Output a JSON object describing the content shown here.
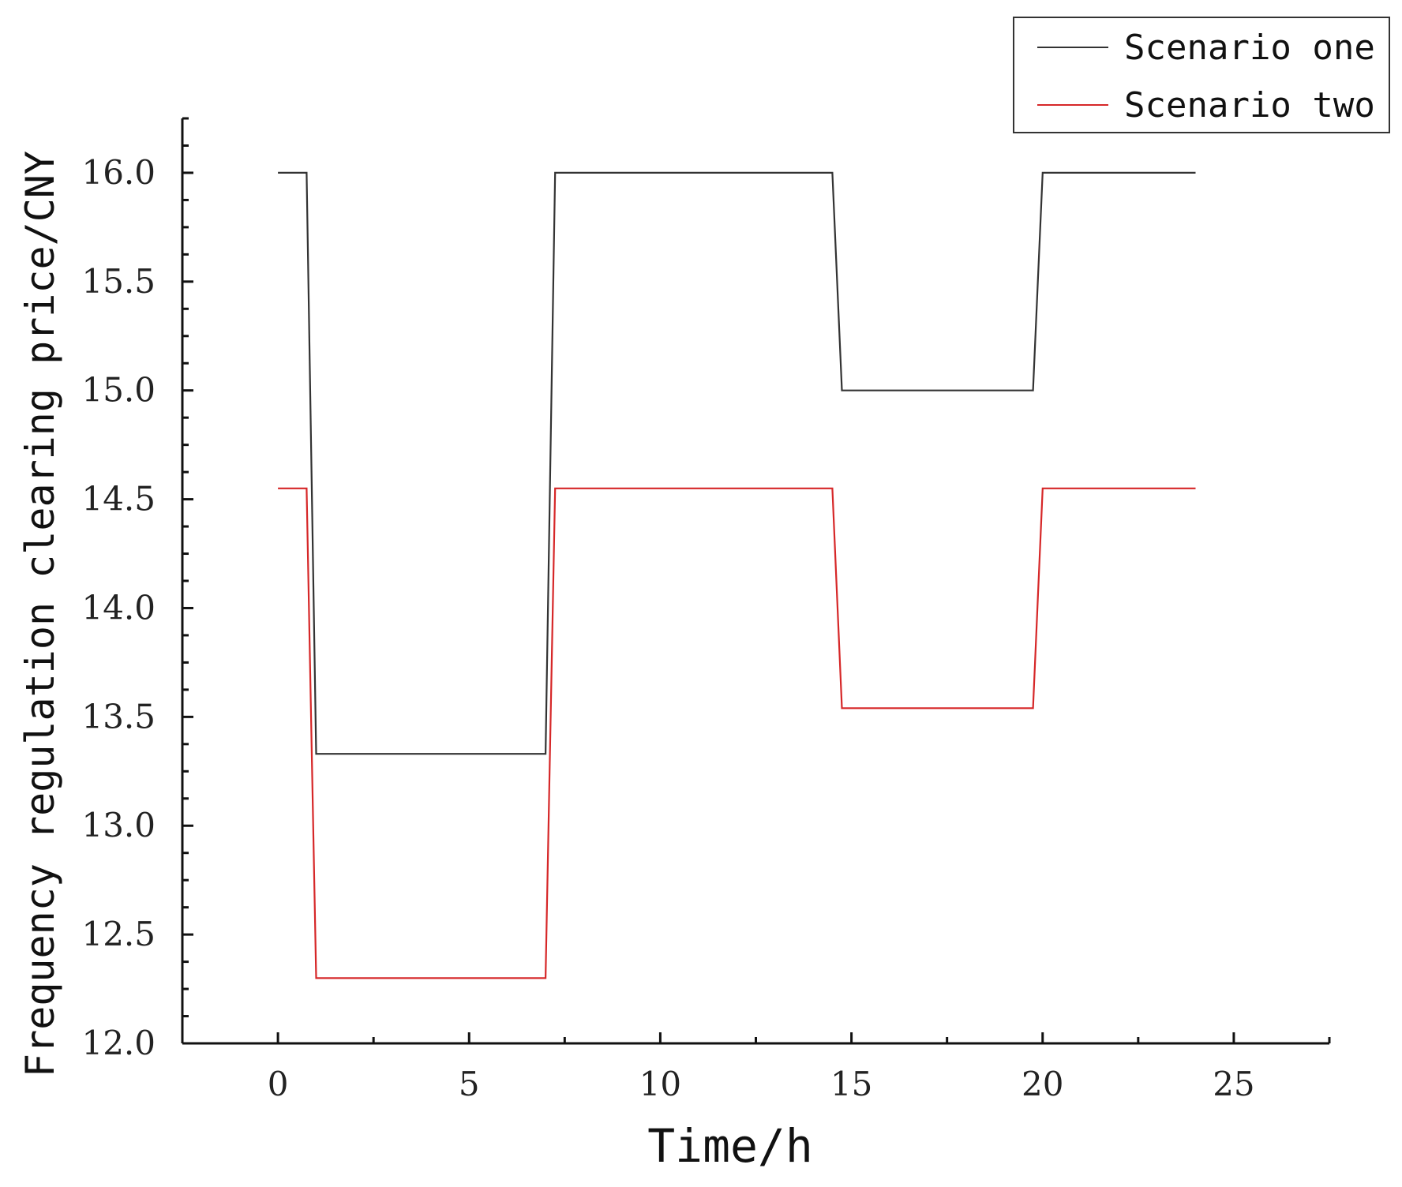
{
  "chart_data": {
    "type": "line",
    "title": "",
    "xlabel": "Time/h",
    "ylabel": "Frequency regulation clearing price/CNY",
    "xlim": [
      -2.5,
      27.5
    ],
    "ylim": [
      12.0,
      16.25
    ],
    "xticks": [
      0,
      5,
      10,
      15,
      20,
      25
    ],
    "xtick_labels": [
      "0",
      "5",
      "10",
      "15",
      "20",
      "25"
    ],
    "yticks": [
      12.0,
      12.5,
      13.0,
      13.5,
      14.0,
      14.5,
      15.0,
      15.5,
      16.0
    ],
    "ytick_labels": [
      "12.0",
      "12.5",
      "13.0",
      "13.5",
      "14.0",
      "14.5",
      "15.0",
      "15.5",
      "16.0"
    ],
    "grid": false,
    "legend_position": "top-right",
    "series": [
      {
        "name": "Scenario one",
        "color": "#333333",
        "x": [
          0,
          0.75,
          1,
          7,
          7.25,
          14.5,
          14.75,
          19.75,
          20,
          24
        ],
        "y": [
          16.0,
          16.0,
          13.33,
          13.33,
          16.0,
          16.0,
          15.0,
          15.0,
          16.0,
          16.0
        ]
      },
      {
        "name": "Scenario two",
        "color": "#d62728",
        "x": [
          0,
          0.75,
          1,
          7,
          7.25,
          14.5,
          14.75,
          19.75,
          20,
          24
        ],
        "y": [
          14.55,
          14.55,
          12.3,
          12.3,
          14.55,
          14.55,
          13.54,
          13.54,
          14.55,
          14.55
        ]
      }
    ]
  }
}
